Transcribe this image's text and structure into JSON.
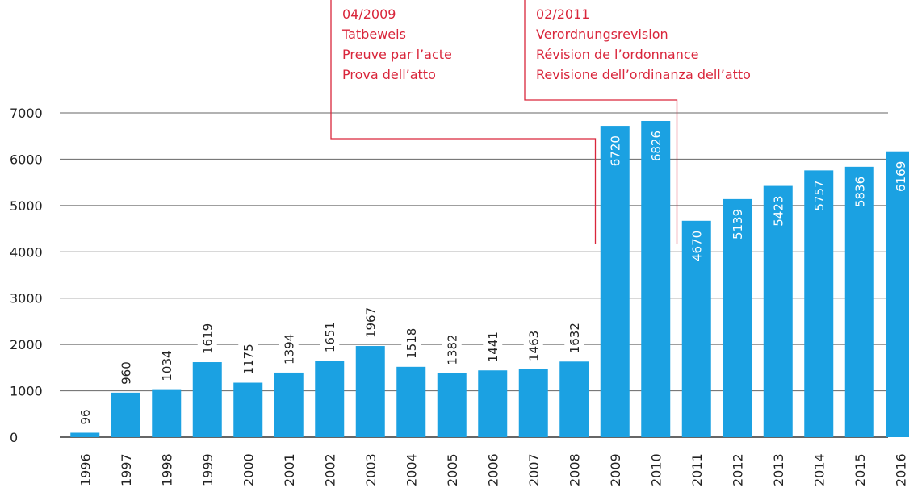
{
  "chart_data": {
    "type": "bar",
    "title": "",
    "xlabel": "",
    "ylabel": "",
    "ylim": [
      0,
      7000
    ],
    "yticks": [
      "0",
      "1000",
      "2000",
      "3000",
      "4000",
      "5000",
      "6000",
      "7000"
    ],
    "grid": true,
    "categories": [
      "1996",
      "1997",
      "1998",
      "1999",
      "2000",
      "2001",
      "2002",
      "2003",
      "2004",
      "2005",
      "2006",
      "2007",
      "2008",
      "2009",
      "2010",
      "2011",
      "2012",
      "2013",
      "2014",
      "2015",
      "2016"
    ],
    "values": [
      96,
      960,
      1034,
      1619,
      1175,
      1394,
      1651,
      1967,
      1518,
      1382,
      1441,
      1463,
      1632,
      6720,
      6826,
      4670,
      5139,
      5423,
      5757,
      5836,
      6169
    ],
    "data_labels": [
      "96",
      "960",
      "1034",
      "1619",
      "1175",
      "1394",
      "1651",
      "1967",
      "1518",
      "1382",
      "1441",
      "1463",
      "1632",
      "6720",
      "6826",
      "4670",
      "5139",
      "5423",
      "5757",
      "5836",
      "6169"
    ],
    "colors": {
      "bar": "#1ba1e2",
      "annotation": "#d9263b",
      "grid": "#666666"
    },
    "annotations": [
      {
        "category": "2009",
        "lines": [
          "04/2009",
          "Tatbeweis",
          "Preuve par l’acte",
          "Prova dell’atto"
        ]
      },
      {
        "category": "2011",
        "lines": [
          "02/2011",
          "Verordnungsrevision",
          "Révision de l’ordonnance",
          "Revisione dell’ordinanza dell’atto"
        ]
      }
    ]
  }
}
